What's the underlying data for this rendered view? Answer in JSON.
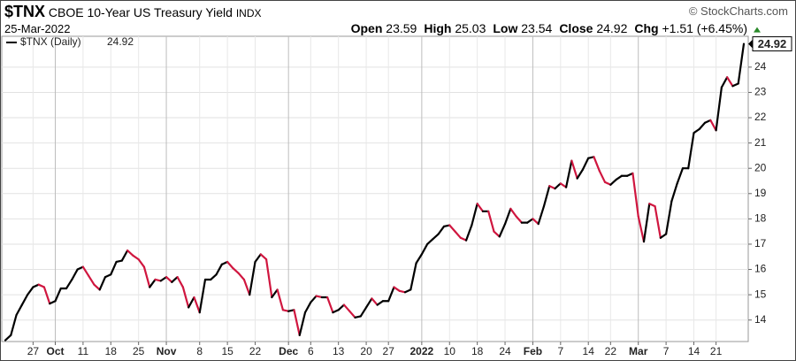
{
  "header": {
    "symbol": "$TNX",
    "name": "CBOE 10-Year US Treasury Yield",
    "exchange": "INDX",
    "date": "25-Mar-2022",
    "copyright": "© StockCharts.com",
    "quote": [
      {
        "label": "Open",
        "value": "23.59"
      },
      {
        "label": "High",
        "value": "25.03"
      },
      {
        "label": "Low",
        "value": "23.54"
      },
      {
        "label": "Close",
        "value": "24.92"
      },
      {
        "label": "Chg",
        "value": "+1.51 (+6.45%)"
      }
    ]
  },
  "chart_data": {
    "type": "line",
    "categories": [
      null,
      null,
      null,
      null,
      null,
      "27",
      null,
      null,
      null,
      "Oct",
      null,
      null,
      null,
      null,
      "11",
      null,
      null,
      null,
      null,
      "18",
      null,
      null,
      null,
      null,
      "25",
      null,
      null,
      null,
      null,
      "Nov",
      null,
      null,
      null,
      null,
      null,
      "8",
      null,
      null,
      null,
      null,
      "15",
      null,
      null,
      null,
      null,
      "22",
      null,
      null,
      null,
      null,
      null,
      "Dec",
      null,
      null,
      null,
      "6",
      null,
      null,
      null,
      null,
      "13",
      null,
      null,
      null,
      null,
      "20",
      null,
      null,
      null,
      "27",
      null,
      null,
      null,
      null,
      null,
      "2022",
      null,
      null,
      null,
      null,
      "10",
      null,
      null,
      null,
      null,
      "18",
      null,
      null,
      null,
      null,
      "24",
      null,
      null,
      null,
      null,
      "Feb",
      null,
      null,
      null,
      null,
      "7",
      null,
      null,
      null,
      null,
      "14",
      null,
      null,
      null,
      "22",
      null,
      null,
      null,
      null,
      "Mar",
      null,
      null,
      null,
      null,
      "7",
      null,
      null,
      null,
      null,
      "14",
      null,
      null,
      null,
      "21",
      null,
      null,
      null,
      null,
      null
    ],
    "series": [
      {
        "name": "$TNX (Daily)",
        "up_color": "#000000",
        "down_color": "#d0163f",
        "values": [
          13.2,
          13.4,
          14.2,
          14.6,
          15.0,
          15.3,
          15.4,
          15.3,
          14.65,
          14.75,
          15.25,
          15.25,
          15.6,
          16.0,
          16.1,
          15.75,
          15.4,
          15.2,
          15.7,
          15.8,
          16.3,
          16.35,
          16.75,
          16.55,
          16.4,
          16.1,
          15.3,
          15.6,
          15.55,
          15.7,
          15.5,
          15.7,
          15.3,
          14.5,
          14.9,
          14.3,
          15.6,
          15.6,
          15.8,
          16.2,
          16.3,
          16.05,
          15.85,
          15.6,
          15.0,
          16.3,
          16.6,
          16.4,
          14.9,
          15.2,
          14.4,
          14.35,
          14.4,
          13.4,
          14.3,
          14.7,
          14.95,
          14.9,
          14.9,
          14.3,
          14.4,
          14.6,
          14.35,
          14.1,
          14.15,
          14.5,
          14.85,
          14.6,
          14.75,
          14.75,
          15.3,
          15.15,
          15.1,
          15.2,
          16.25,
          16.6,
          17.0,
          17.2,
          17.4,
          17.7,
          17.75,
          17.5,
          17.25,
          17.15,
          17.75,
          18.6,
          18.3,
          18.3,
          17.5,
          17.3,
          17.8,
          18.4,
          18.1,
          17.85,
          17.85,
          18.0,
          17.8,
          18.5,
          19.3,
          19.2,
          19.4,
          19.25,
          20.3,
          19.6,
          19.95,
          20.4,
          20.45,
          19.9,
          19.45,
          19.35,
          19.55,
          19.7,
          19.7,
          19.8,
          18.1,
          17.1,
          18.6,
          18.5,
          17.25,
          17.4,
          18.7,
          19.4,
          20.0,
          20.0,
          21.4,
          21.55,
          21.8,
          21.9,
          21.5,
          23.2,
          23.6,
          23.25,
          23.35,
          24.92
        ]
      }
    ],
    "ylim": [
      13.15,
      25.22
    ],
    "yticks": [
      14,
      15,
      16,
      17,
      18,
      19,
      20,
      21,
      22,
      23,
      24
    ],
    "grid": true
  }
}
